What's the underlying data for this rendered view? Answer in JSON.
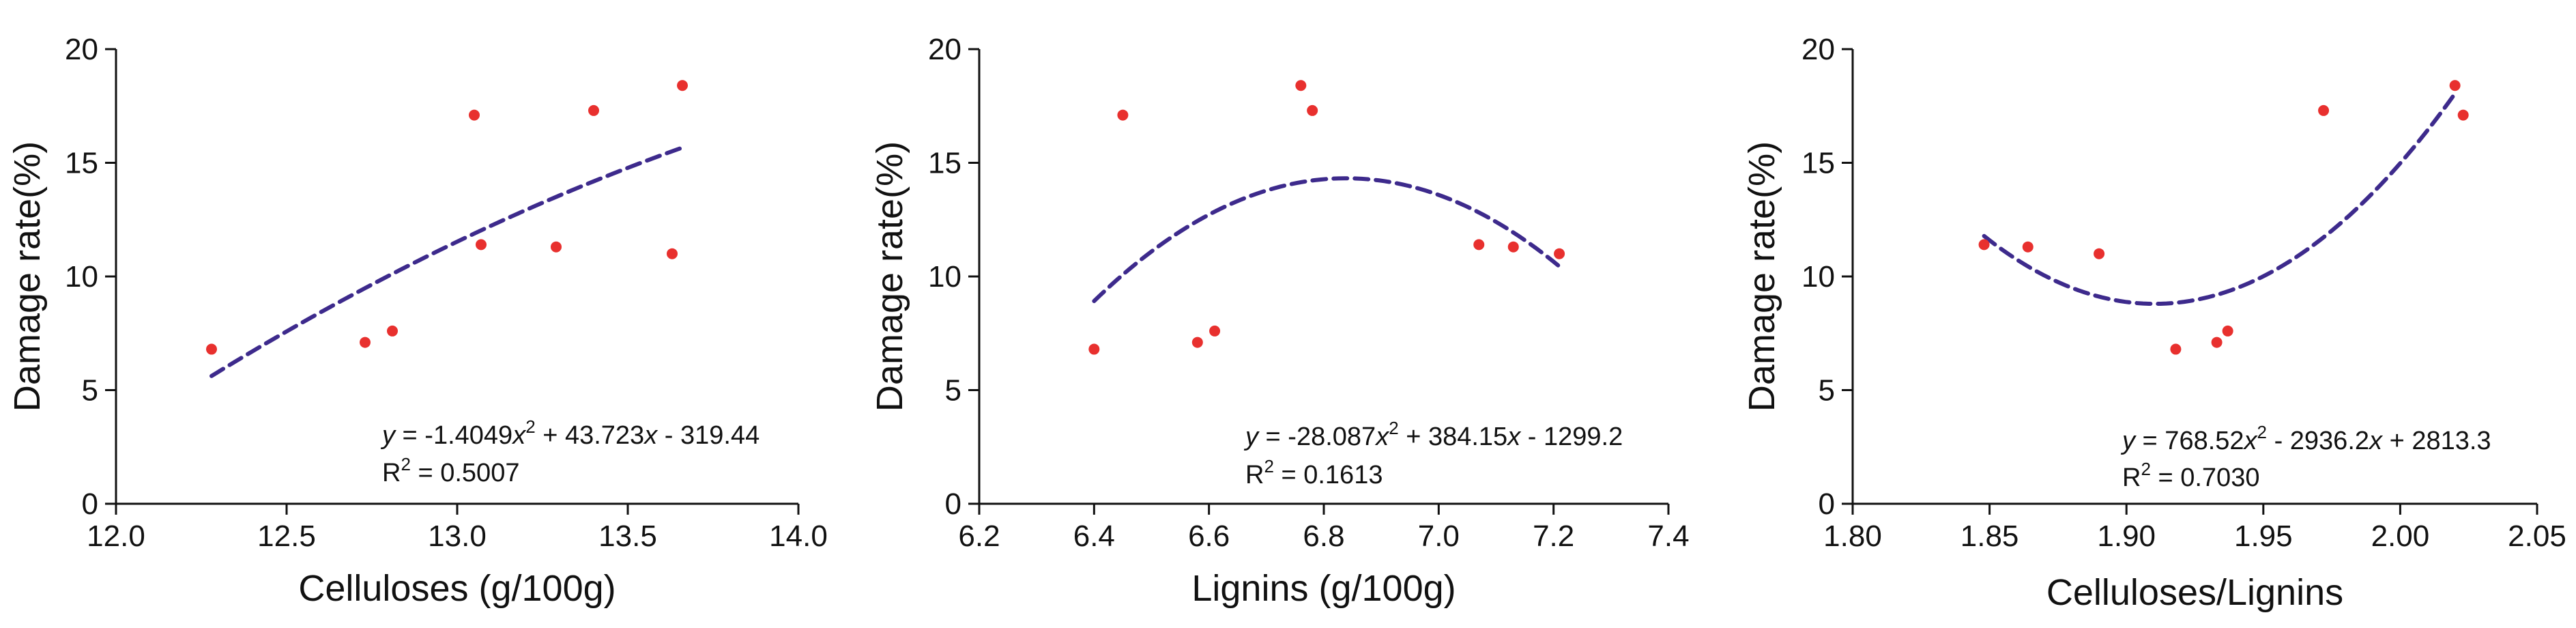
{
  "colors": {
    "point": "#e8302e",
    "fit": "#3d2a8c",
    "axis": "#111111"
  },
  "chart_data": [
    {
      "type": "scatter",
      "title": "",
      "xlabel": "Celluloses (g/100g)",
      "ylabel": "Damage rate(%)",
      "xlim": [
        12.0,
        14.0
      ],
      "ylim": [
        0,
        20
      ],
      "xticks": [
        12.0,
        12.5,
        13.0,
        13.5,
        14.0
      ],
      "xtick_labels": [
        "12.0",
        "12.5",
        "13.0",
        "13.5",
        "14.0"
      ],
      "yticks": [
        0,
        5,
        10,
        15,
        20
      ],
      "ytick_labels": [
        "0",
        "5",
        "10",
        "15",
        "20"
      ],
      "points": [
        {
          "x": 12.28,
          "y": 6.8
        },
        {
          "x": 12.73,
          "y": 7.1
        },
        {
          "x": 12.81,
          "y": 7.6
        },
        {
          "x": 13.05,
          "y": 17.1
        },
        {
          "x": 13.07,
          "y": 11.4
        },
        {
          "x": 13.29,
          "y": 11.3
        },
        {
          "x": 13.4,
          "y": 17.3
        },
        {
          "x": 13.63,
          "y": 11.0
        },
        {
          "x": 13.66,
          "y": 18.4
        }
      ],
      "fit": {
        "a": -1.4049,
        "b": 43.723,
        "c": -319.44,
        "x_range": [
          12.28,
          13.66
        ]
      },
      "equation": {
        "y_var": "y",
        "part1": " = -1.4049",
        "x_var1": "x",
        "sup": "2",
        "part2": " + 43.723",
        "x_var2": "x",
        "part3": " - 319.44"
      },
      "r2": {
        "prefix": "R",
        "sup": "2",
        "value": " = 0.5007"
      }
    },
    {
      "type": "scatter",
      "title": "",
      "xlabel": "Lignins (g/100g)",
      "ylabel": "Damage rate(%)",
      "xlim": [
        6.2,
        7.4
      ],
      "ylim": [
        0,
        20
      ],
      "xticks": [
        6.2,
        6.4,
        6.6,
        6.8,
        7.0,
        7.2,
        7.4
      ],
      "xtick_labels": [
        "6.2",
        "6.4",
        "6.6",
        "6.8",
        "7.0",
        "7.2",
        "7.4"
      ],
      "yticks": [
        0,
        5,
        10,
        15,
        20
      ],
      "ytick_labels": [
        "0",
        "5",
        "10",
        "15",
        "20"
      ],
      "points": [
        {
          "x": 6.4,
          "y": 6.8
        },
        {
          "x": 6.45,
          "y": 17.1
        },
        {
          "x": 6.58,
          "y": 7.1
        },
        {
          "x": 6.61,
          "y": 7.6
        },
        {
          "x": 6.76,
          "y": 18.4
        },
        {
          "x": 6.78,
          "y": 17.3
        },
        {
          "x": 7.07,
          "y": 11.4
        },
        {
          "x": 7.13,
          "y": 11.3
        },
        {
          "x": 7.21,
          "y": 11.0
        }
      ],
      "fit": {
        "a": -28.087,
        "b": 384.15,
        "c": -1299.2,
        "x_range": [
          6.4,
          7.21
        ]
      },
      "equation": {
        "y_var": "y",
        "part1": " = -28.087",
        "x_var1": "x",
        "sup": "2",
        "part2": " + 384.15",
        "x_var2": "x",
        "part3": " - 1299.2"
      },
      "r2": {
        "prefix": "R",
        "sup": "2",
        "value": " = 0.1613"
      }
    },
    {
      "type": "scatter",
      "title": "",
      "xlabel": "Celluloses/Lignins",
      "ylabel": "Damage rate(%)",
      "xlim": [
        1.8,
        2.05
      ],
      "ylim": [
        0,
        20
      ],
      "xticks": [
        1.8,
        1.85,
        1.9,
        1.95,
        2.0,
        2.05
      ],
      "xtick_labels": [
        "1.80",
        "1.85",
        "1.90",
        "1.95",
        "2.00",
        "2.05"
      ],
      "yticks": [
        0,
        5,
        10,
        15,
        20
      ],
      "ytick_labels": [
        "0",
        "5",
        "10",
        "15",
        "20"
      ],
      "points": [
        {
          "x": 1.848,
          "y": 11.4
        },
        {
          "x": 1.864,
          "y": 11.3
        },
        {
          "x": 1.89,
          "y": 11.0
        },
        {
          "x": 1.918,
          "y": 6.8
        },
        {
          "x": 1.933,
          "y": 7.1
        },
        {
          "x": 1.937,
          "y": 7.6
        },
        {
          "x": 1.972,
          "y": 17.3
        },
        {
          "x": 2.02,
          "y": 18.4
        },
        {
          "x": 2.023,
          "y": 17.1
        }
      ],
      "fit": {
        "a": 768.52,
        "b": -2936.2,
        "c": 2813.3,
        "x_range": [
          1.848,
          2.02
        ]
      },
      "equation": {
        "y_var": "y",
        "part1": " = 768.52",
        "x_var1": "x",
        "sup": "2",
        "part2": " - 2936.2",
        "x_var2": "x",
        "part3": " + 2813.3"
      },
      "r2": {
        "prefix": "R",
        "sup": "2",
        "value": " = 0.7030"
      }
    }
  ]
}
